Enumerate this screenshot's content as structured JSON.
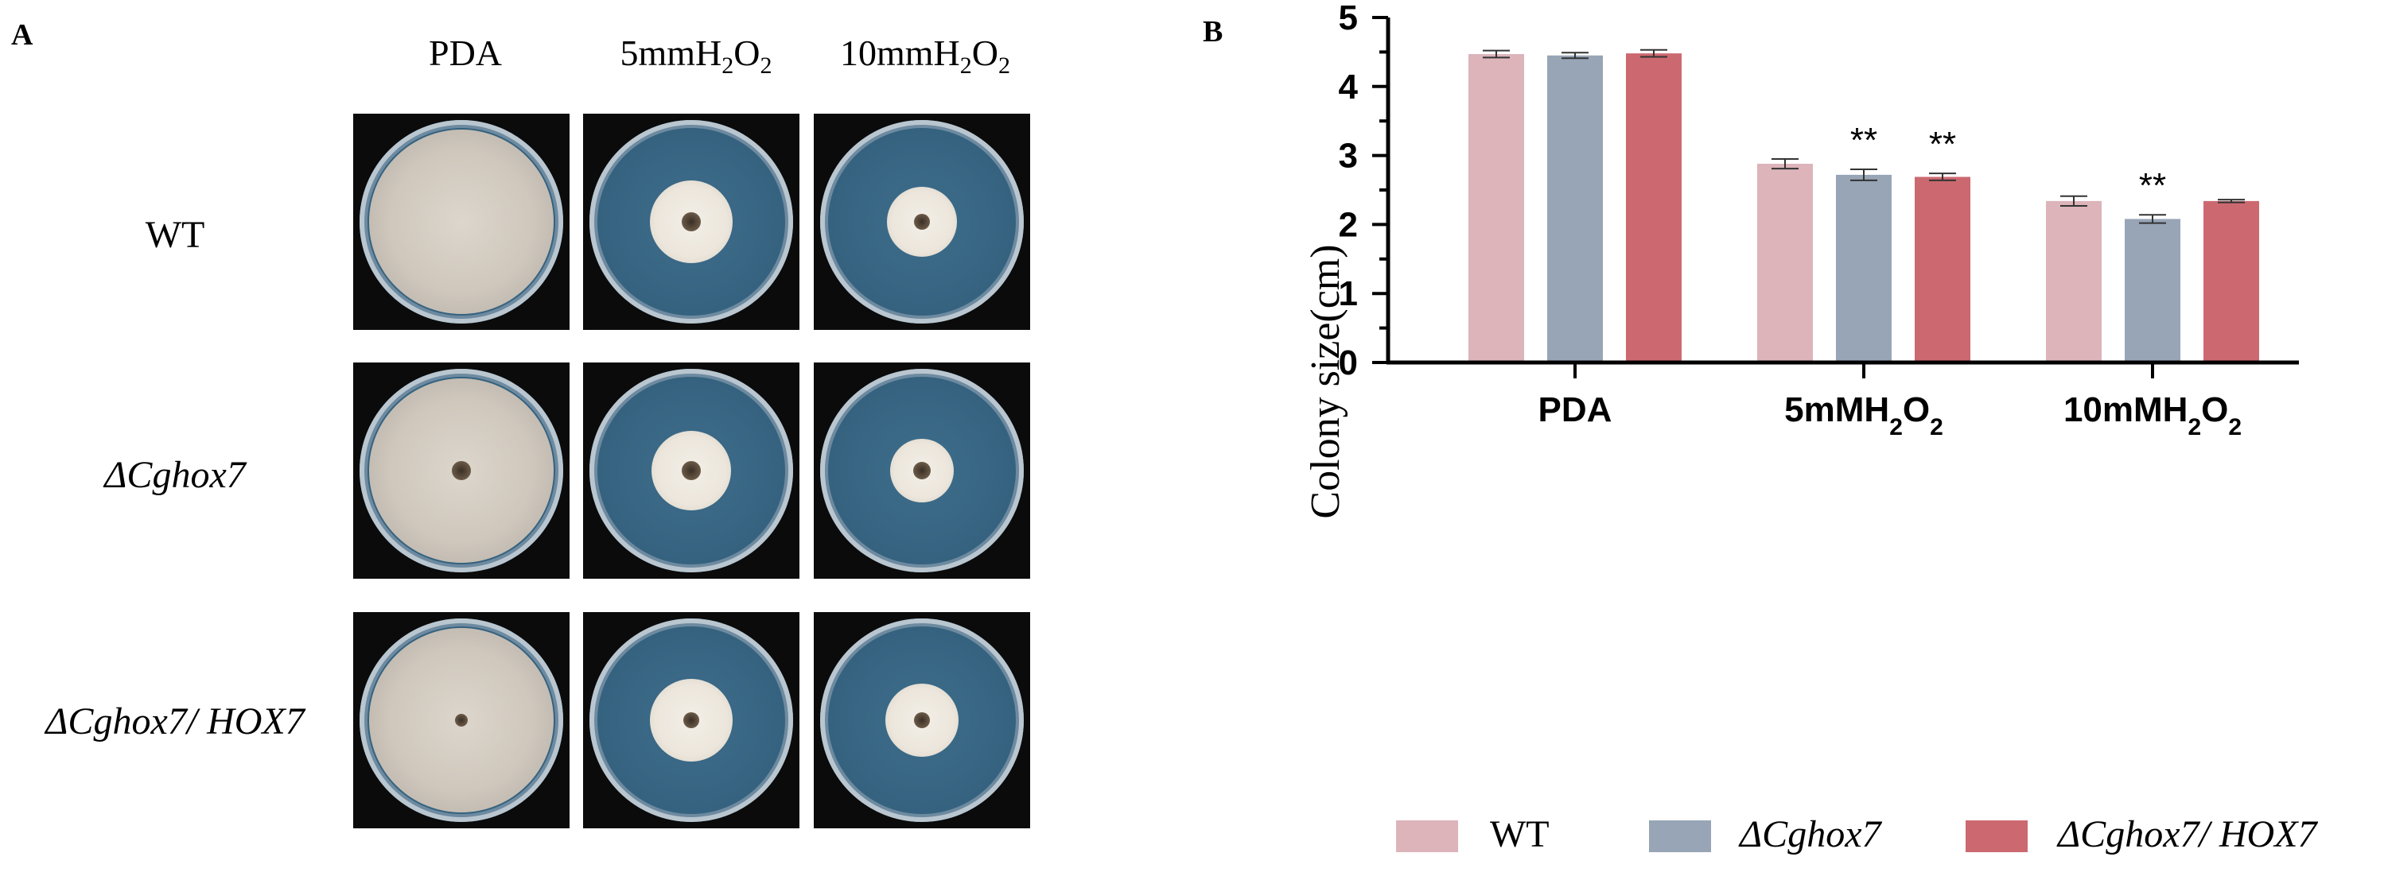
{
  "panel_a": {
    "label": "A",
    "columns": [
      "PDA",
      "5mmH",
      "10mmH"
    ],
    "column_subs": [
      "",
      "2",
      "2"
    ],
    "column_mid": [
      "",
      "O",
      "O"
    ],
    "rows": [
      "WT",
      "ΔCghox7",
      "ΔCghox7/ HOX7"
    ]
  },
  "panel_b": {
    "label": "B"
  },
  "colors": {
    "wt": "#dcb4ba",
    "mutant": "#97a5b6",
    "complement": "#cc6970"
  },
  "chart_data": {
    "type": "bar",
    "ylabel": "Colony size(cm)",
    "ylim": [
      0,
      5
    ],
    "yticks": [
      "0",
      "1",
      "2",
      "3",
      "4",
      "5"
    ],
    "categories": [
      "PDA",
      "5mMH2O2",
      "10mMH2O2"
    ],
    "category_labels": [
      {
        "main": "PDA",
        "sub": "",
        "mid": "",
        "sub2": ""
      },
      {
        "main": "5mMH",
        "sub": "2",
        "mid": "O",
        "sub2": "2"
      },
      {
        "main": "10mMH",
        "sub": "2",
        "mid": "O",
        "sub2": "2"
      }
    ],
    "series": [
      {
        "name": "WT",
        "values": [
          4.47,
          2.88,
          2.34
        ],
        "errors": [
          0.05,
          0.07,
          0.07
        ]
      },
      {
        "name": "ΔCghox7",
        "values": [
          4.45,
          2.72,
          2.08
        ],
        "errors": [
          0.04,
          0.08,
          0.06
        ]
      },
      {
        "name": "ΔCghox7/ HOX7",
        "values": [
          4.48,
          2.69,
          2.34
        ],
        "errors": [
          0.05,
          0.05,
          0.02
        ]
      }
    ],
    "annotations": [
      {
        "text": "**",
        "category": 1,
        "series": 1
      },
      {
        "text": "**",
        "category": 1,
        "series": 2
      },
      {
        "text": "**",
        "category": 2,
        "series": 1
      }
    ],
    "legend": [
      "WT",
      "ΔCghox7",
      "ΔCghox7/ HOX7"
    ],
    "legend_position": "bottom"
  }
}
